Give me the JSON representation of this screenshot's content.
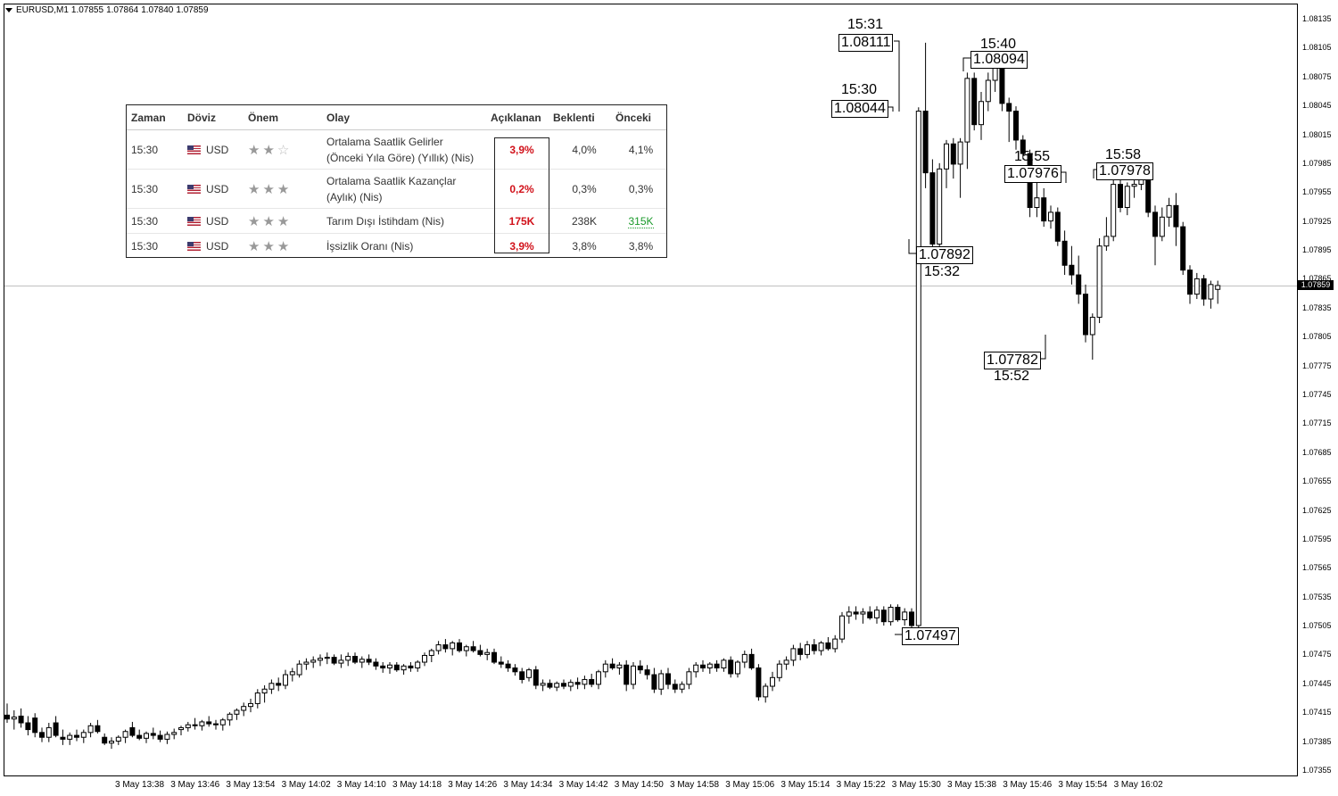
{
  "header": {
    "symbol": "EURUSD,M1",
    "open": "1.07855",
    "high": "1.07864",
    "low": "1.07840",
    "close": "1.07859"
  },
  "events_table": {
    "headers": [
      "Zaman",
      "Döviz",
      "Önem",
      "Olay",
      "Açıklanan",
      "Beklenti",
      "Önceki"
    ],
    "rows": [
      {
        "time": "15:30",
        "currency": "USD",
        "importance": 2,
        "event_line1": "Ortalama Saatlik Gelirler",
        "event_line2": "(Önceki Yıla Göre) (Yıllık) (Nis)",
        "actual": "3,9%",
        "forecast": "4,0%",
        "previous": "4,1%"
      },
      {
        "time": "15:30",
        "currency": "USD",
        "importance": 3,
        "event_line1": "Ortalama Saatlik Kazançlar",
        "event_line2": "(Aylık) (Nis)",
        "actual": "0,2%",
        "forecast": "0,3%",
        "previous": "0,3%"
      },
      {
        "time": "15:30",
        "currency": "USD",
        "importance": 3,
        "event_line1": "Tarım Dışı İstihdam (Nis)",
        "event_line2": "",
        "actual": "175K",
        "forecast": "238K",
        "previous": "315K"
      },
      {
        "time": "15:30",
        "currency": "USD",
        "importance": 3,
        "event_line1": "İşsizlik Oranı (Nis)",
        "event_line2": "",
        "actual": "3,9%",
        "forecast": "3,8%",
        "previous": "3,8%"
      }
    ]
  },
  "chart_data": {
    "type": "candlestick",
    "ylim": [
      1.07355,
      1.08135
    ],
    "y_ticks": [
      "1.08135",
      "1.08105",
      "1.08075",
      "1.08045",
      "1.08015",
      "1.07985",
      "1.07955",
      "1.07925",
      "1.07895",
      "1.07865",
      "1.07835",
      "1.07805",
      "1.07775",
      "1.07745",
      "1.07715",
      "1.07685",
      "1.07655",
      "1.07625",
      "1.07595",
      "1.07565",
      "1.07535",
      "1.07505",
      "1.07475",
      "1.07445",
      "1.07415",
      "1.07385",
      "1.07355"
    ],
    "x_ticks": [
      "3 May 13:38",
      "3 May 13:46",
      "3 May 13:54",
      "3 May 14:02",
      "3 May 14:10",
      "3 May 14:18",
      "3 May 14:26",
      "3 May 14:34",
      "3 May 14:42",
      "3 May 14:50",
      "3 May 14:58",
      "3 May 15:06",
      "3 May 15:14",
      "3 May 15:22",
      "3 May 15:30",
      "3 May 15:38",
      "3 May 15:46",
      "3 May 15:54",
      "3 May 16:02"
    ],
    "current_price": "1.07859",
    "annotations": [
      {
        "time": "15:31",
        "price": "1.08111",
        "label_side": "above"
      },
      {
        "time": "15:30",
        "price": "1.08044",
        "label_side": "above"
      },
      {
        "time": "15:40",
        "price": "1.08094",
        "label_side": "above"
      },
      {
        "time": "15:32",
        "price": "1.07892",
        "label_side": "below"
      },
      {
        "time": "15:55",
        "price": "1.07976",
        "label_side": "above"
      },
      {
        "time": "15:58",
        "price": "1.07978",
        "label_side": "above"
      },
      {
        "time": "15:52",
        "price": "1.07782",
        "label_side": "below"
      },
      {
        "time": "",
        "price": "1.07497",
        "label_side": "right"
      }
    ],
    "candles": [
      [
        1.07413,
        1.07425,
        1.07405,
        1.07409
      ],
      [
        1.07409,
        1.07418,
        1.07398,
        1.07411
      ],
      [
        1.07412,
        1.0742,
        1.074,
        1.07405
      ],
      [
        1.07405,
        1.07412,
        1.07392,
        1.07398
      ],
      [
        1.0741,
        1.07415,
        1.0739,
        1.07395
      ],
      [
        1.07395,
        1.074,
        1.07385,
        1.0739
      ],
      [
        1.0739,
        1.07405,
        1.07385,
        1.074
      ],
      [
        1.07405,
        1.07412,
        1.0739,
        1.07392
      ],
      [
        1.0739,
        1.07398,
        1.07382,
        1.07388
      ],
      [
        1.07388,
        1.07395,
        1.07382,
        1.07392
      ],
      [
        1.07392,
        1.07398,
        1.07386,
        1.0739
      ],
      [
        1.0739,
        1.07398,
        1.07384,
        1.07395
      ],
      [
        1.07395,
        1.07405,
        1.0739,
        1.07402
      ],
      [
        1.07402,
        1.07408,
        1.07394,
        1.07396
      ],
      [
        1.0739,
        1.07394,
        1.07382,
        1.07384
      ],
      [
        1.07384,
        1.0739,
        1.07378,
        1.07386
      ],
      [
        1.07386,
        1.07392,
        1.07382,
        1.0739
      ],
      [
        1.0739,
        1.07398,
        1.07384,
        1.07396
      ],
      [
        1.074,
        1.07406,
        1.0739,
        1.07392
      ],
      [
        1.07392,
        1.07398,
        1.07387,
        1.07389
      ],
      [
        1.07389,
        1.07396,
        1.07384,
        1.07394
      ],
      [
        1.07394,
        1.074,
        1.07388,
        1.07392
      ],
      [
        1.07392,
        1.07397,
        1.07385,
        1.07388
      ],
      [
        1.07388,
        1.07396,
        1.07383,
        1.07393
      ],
      [
        1.07393,
        1.07399,
        1.07388,
        1.07395
      ],
      [
        1.07398,
        1.07402,
        1.07392,
        1.074
      ],
      [
        1.074,
        1.07406,
        1.07396,
        1.07403
      ],
      [
        1.07403,
        1.0741,
        1.07398,
        1.07402
      ],
      [
        1.07402,
        1.07408,
        1.07397,
        1.07406
      ],
      [
        1.07406,
        1.07412,
        1.07401,
        1.07404
      ],
      [
        1.07404,
        1.07408,
        1.07398,
        1.07403
      ],
      [
        1.07403,
        1.0741,
        1.07397,
        1.07408
      ],
      [
        1.07408,
        1.07416,
        1.07402,
        1.07414
      ],
      [
        1.07414,
        1.0742,
        1.07408,
        1.07418
      ],
      [
        1.07418,
        1.07426,
        1.07412,
        1.07422
      ],
      [
        1.07422,
        1.0743,
        1.07416,
        1.07425
      ],
      [
        1.07425,
        1.0744,
        1.0742,
        1.07436
      ],
      [
        1.07436,
        1.07444,
        1.07426,
        1.0744
      ],
      [
        1.0744,
        1.0745,
        1.07435,
        1.07446
      ],
      [
        1.07446,
        1.07452,
        1.07438,
        1.07444
      ],
      [
        1.07444,
        1.0746,
        1.0744,
        1.07455
      ],
      [
        1.07455,
        1.07462,
        1.07448,
        1.07458
      ],
      [
        1.07455,
        1.0747,
        1.07452,
        1.07466
      ],
      [
        1.07466,
        1.07472,
        1.0746,
        1.07468
      ],
      [
        1.07468,
        1.07474,
        1.07462,
        1.0747
      ],
      [
        1.0747,
        1.07476,
        1.07464,
        1.07472
      ],
      [
        1.07472,
        1.07478,
        1.07466,
        1.07473
      ],
      [
        1.07473,
        1.07476,
        1.07465,
        1.07467
      ],
      [
        1.07467,
        1.07476,
        1.07462,
        1.0747
      ],
      [
        1.0747,
        1.07478,
        1.07464,
        1.07474
      ],
      [
        1.07474,
        1.07478,
        1.07466,
        1.07468
      ],
      [
        1.07468,
        1.07474,
        1.07462,
        1.07471
      ],
      [
        1.07471,
        1.07476,
        1.07465,
        1.07468
      ],
      [
        1.07468,
        1.07472,
        1.0746,
        1.07464
      ],
      [
        1.07464,
        1.07468,
        1.07457,
        1.07462
      ],
      [
        1.07462,
        1.07468,
        1.07456,
        1.07465
      ],
      [
        1.07465,
        1.07468,
        1.07458,
        1.0746
      ],
      [
        1.0746,
        1.07466,
        1.07455,
        1.07464
      ],
      [
        1.07464,
        1.07468,
        1.07458,
        1.07462
      ],
      [
        1.07462,
        1.0747,
        1.07458,
        1.07468
      ],
      [
        1.07468,
        1.07478,
        1.07464,
        1.07475
      ],
      [
        1.07475,
        1.07482,
        1.07468,
        1.0748
      ],
      [
        1.0748,
        1.0749,
        1.07476,
        1.07486
      ],
      [
        1.07486,
        1.07492,
        1.07478,
        1.07482
      ],
      [
        1.07482,
        1.0749,
        1.07475,
        1.07488
      ],
      [
        1.07488,
        1.07492,
        1.07478,
        1.0748
      ],
      [
        1.0748,
        1.07486,
        1.07474,
        1.07484
      ],
      [
        1.07484,
        1.0749,
        1.07478,
        1.0748
      ],
      [
        1.0748,
        1.07486,
        1.07474,
        1.07476
      ],
      [
        1.07476,
        1.07482,
        1.0747,
        1.07478
      ],
      [
        1.07478,
        1.07482,
        1.07466,
        1.07468
      ],
      [
        1.07468,
        1.07474,
        1.07462,
        1.07466
      ],
      [
        1.07466,
        1.0747,
        1.07458,
        1.07462
      ],
      [
        1.07462,
        1.07466,
        1.07454,
        1.07458
      ],
      [
        1.07458,
        1.07462,
        1.07446,
        1.0745
      ],
      [
        1.07452,
        1.07462,
        1.07448,
        1.0746
      ],
      [
        1.0746,
        1.07464,
        1.0744,
        1.07444
      ],
      [
        1.07444,
        1.0745,
        1.07438,
        1.07446
      ],
      [
        1.07446,
        1.0745,
        1.0744,
        1.07442
      ],
      [
        1.07442,
        1.07448,
        1.07438,
        1.07446
      ],
      [
        1.07446,
        1.0745,
        1.0744,
        1.07443
      ],
      [
        1.07443,
        1.0745,
        1.07438,
        1.07447
      ],
      [
        1.07447,
        1.07452,
        1.0744,
        1.07445
      ],
      [
        1.07445,
        1.07454,
        1.0744,
        1.0745
      ],
      [
        1.0745,
        1.07456,
        1.07442,
        1.07445
      ],
      [
        1.07445,
        1.0746,
        1.0744,
        1.07458
      ],
      [
        1.07458,
        1.0747,
        1.07452,
        1.07466
      ],
      [
        1.07466,
        1.07472,
        1.0746,
        1.07462
      ],
      [
        1.07462,
        1.07468,
        1.07455,
        1.07465
      ],
      [
        1.07465,
        1.0747,
        1.07438,
        1.07445
      ],
      [
        1.07445,
        1.07468,
        1.0744,
        1.07464
      ],
      [
        1.07464,
        1.0747,
        1.07456,
        1.0746
      ],
      [
        1.0746,
        1.07465,
        1.0745,
        1.07455
      ],
      [
        1.07455,
        1.07462,
        1.07436,
        1.0744
      ],
      [
        1.0744,
        1.0746,
        1.07434,
        1.07456
      ],
      [
        1.07456,
        1.07462,
        1.0744,
        1.07445
      ],
      [
        1.07445,
        1.0745,
        1.07436,
        1.0744
      ],
      [
        1.0744,
        1.07448,
        1.07436,
        1.07445
      ],
      [
        1.07445,
        1.07462,
        1.0744,
        1.07458
      ],
      [
        1.07458,
        1.07468,
        1.07452,
        1.07465
      ],
      [
        1.07465,
        1.0747,
        1.07458,
        1.07462
      ],
      [
        1.07462,
        1.07468,
        1.07456,
        1.07466
      ],
      [
        1.07466,
        1.0747,
        1.07458,
        1.07462
      ],
      [
        1.07462,
        1.07472,
        1.07458,
        1.0747
      ],
      [
        1.0747,
        1.07474,
        1.07452,
        1.07456
      ],
      [
        1.07456,
        1.0747,
        1.07452,
        1.07468
      ],
      [
        1.07468,
        1.0748,
        1.07462,
        1.07476
      ],
      [
        1.07476,
        1.07482,
        1.0746,
        1.07462
      ],
      [
        1.07462,
        1.07466,
        1.07428,
        1.07432
      ],
      [
        1.07432,
        1.07446,
        1.07426,
        1.07443
      ],
      [
        1.07443,
        1.07458,
        1.07438,
        1.07452
      ],
      [
        1.07452,
        1.0747,
        1.07448,
        1.07466
      ],
      [
        1.07466,
        1.07474,
        1.0746,
        1.0747
      ],
      [
        1.0747,
        1.07486,
        1.07464,
        1.07482
      ],
      [
        1.07482,
        1.07488,
        1.0747,
        1.07476
      ],
      [
        1.07476,
        1.0749,
        1.07472,
        1.07486
      ],
      [
        1.07486,
        1.07492,
        1.07476,
        1.0748
      ],
      [
        1.0748,
        1.0749,
        1.07475,
        1.07488
      ],
      [
        1.07488,
        1.07494,
        1.0748,
        1.07482
      ],
      [
        1.07482,
        1.07496,
        1.07478,
        1.07492
      ],
      [
        1.07492,
        1.0752,
        1.07488,
        1.07516
      ],
      [
        1.07516,
        1.07526,
        1.07508,
        1.0752
      ],
      [
        1.0752,
        1.07526,
        1.07512,
        1.07518
      ],
      [
        1.07518,
        1.07524,
        1.07508,
        1.0752
      ],
      [
        1.0752,
        1.07526,
        1.07512,
        1.07514
      ],
      [
        1.07514,
        1.07526,
        1.07508,
        1.07522
      ],
      [
        1.07522,
        1.07526,
        1.07506,
        1.0751
      ],
      [
        1.0751,
        1.07528,
        1.07506,
        1.07525
      ],
      [
        1.07525,
        1.07528,
        1.0751,
        1.07512
      ],
      [
        1.07512,
        1.07524,
        1.07506,
        1.0752
      ],
      [
        1.0752,
        1.07524,
        1.07502,
        1.07506
      ],
      [
        1.07506,
        1.08044,
        1.07497,
        1.0804
      ],
      [
        1.0804,
        1.08111,
        1.0796,
        1.07976
      ],
      [
        1.07976,
        1.0799,
        1.07892,
        1.07902
      ],
      [
        1.07902,
        1.07986,
        1.07895,
        1.0798
      ],
      [
        1.0798,
        1.0801,
        1.0796,
        1.08006
      ],
      [
        1.08006,
        1.08012,
        1.0797,
        1.07985
      ],
      [
        1.07985,
        1.08012,
        1.0795,
        1.08008
      ],
      [
        1.08008,
        1.0808,
        1.0798,
        1.08074
      ],
      [
        1.08074,
        1.0808,
        1.0802,
        1.08026
      ],
      [
        1.08026,
        1.0806,
        1.0801,
        1.0805
      ],
      [
        1.0805,
        1.0808,
        1.0804,
        1.08072
      ],
      [
        1.08072,
        1.08094,
        1.0806,
        1.08088
      ],
      [
        1.08088,
        1.08094,
        1.0804,
        1.08048
      ],
      [
        1.08048,
        1.08054,
        1.08008,
        1.0804
      ],
      [
        1.0804,
        1.08045,
        1.08,
        1.0801
      ],
      [
        1.0801,
        1.08015,
        1.0799,
        1.07996
      ],
      [
        1.07996,
        1.08,
        1.0793,
        1.0794
      ],
      [
        1.0794,
        1.07976,
        1.0793,
        1.0795
      ],
      [
        1.0795,
        1.0796,
        1.0792,
        1.07926
      ],
      [
        1.07926,
        1.07942,
        1.07918,
        1.07935
      ],
      [
        1.07935,
        1.0794,
        1.079,
        1.07905
      ],
      [
        1.07905,
        1.07916,
        1.0787,
        1.0788
      ],
      [
        1.0788,
        1.079,
        1.0786,
        1.0787
      ],
      [
        1.0787,
        1.0789,
        1.0784,
        1.0785
      ],
      [
        1.0785,
        1.0786,
        1.078,
        1.07808
      ],
      [
        1.07808,
        1.0783,
        1.07782,
        1.07826
      ],
      [
        1.07826,
        1.07908,
        1.0782,
        1.079
      ],
      [
        1.079,
        1.0793,
        1.07895,
        1.0791
      ],
      [
        1.0791,
        1.07976,
        1.07905,
        1.07964
      ],
      [
        1.07964,
        1.0797,
        1.07935,
        1.0794
      ],
      [
        1.0794,
        1.07966,
        1.07932,
        1.07962
      ],
      [
        1.07962,
        1.0797,
        1.0795,
        1.07964
      ],
      [
        1.07964,
        1.07978,
        1.07958,
        1.07974
      ],
      [
        1.07974,
        1.07978,
        1.0793,
        1.07935
      ],
      [
        1.07935,
        1.07942,
        1.0788,
        1.0791
      ],
      [
        1.0791,
        1.0794,
        1.07905,
        1.0793
      ],
      [
        1.0793,
        1.0795,
        1.0792,
        1.07942
      ],
      [
        1.07942,
        1.07955,
        1.079,
        1.0792
      ],
      [
        1.0792,
        1.07925,
        1.0787,
        1.07875
      ],
      [
        1.07875,
        1.0788,
        1.0784,
        1.0785
      ],
      [
        1.0785,
        1.07872,
        1.07845,
        1.07866
      ],
      [
        1.07866,
        1.0787,
        1.07838,
        1.07845
      ],
      [
        1.07845,
        1.07864,
        1.07835,
        1.0786
      ],
      [
        1.07855,
        1.07864,
        1.0784,
        1.07859
      ]
    ]
  }
}
